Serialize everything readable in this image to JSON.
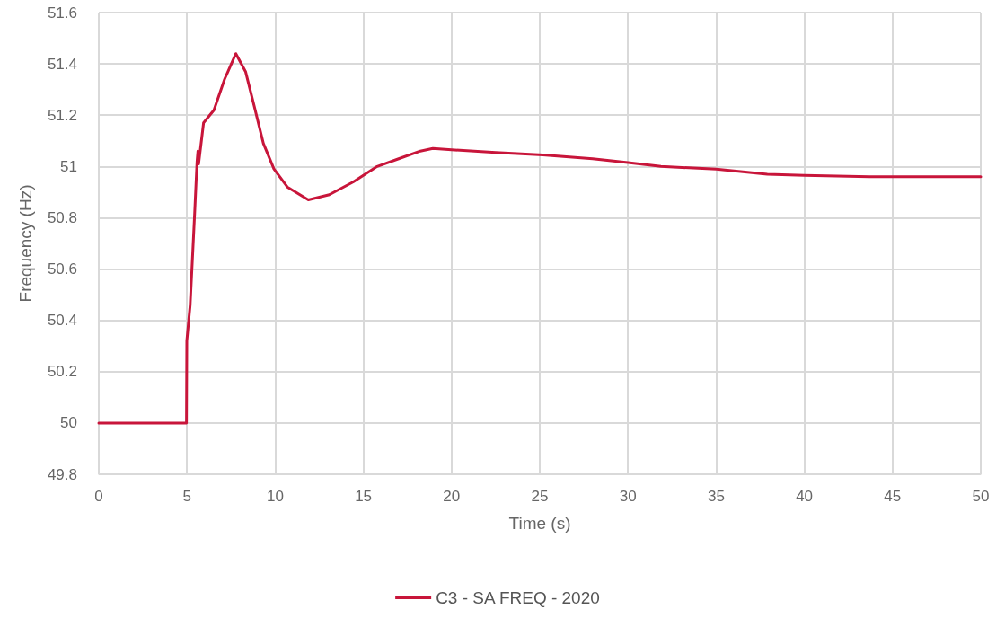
{
  "chart_data": {
    "type": "line",
    "xlabel": "Time (s)",
    "ylabel": "Frequency (Hz)",
    "x": [
      0,
      2,
      4,
      4.97,
      4.99,
      5.18,
      5.43,
      5.57,
      5.62,
      5.66,
      5.94,
      6.53,
      7.13,
      7.77,
      8.32,
      8.83,
      9.33,
      9.93,
      10.69,
      11.88,
      13.07,
      14.43,
      15.78,
      17,
      18.23,
      18.94,
      20,
      22.5,
      25.18,
      28,
      30,
      31.87,
      35,
      37.9,
      40,
      43.7,
      46,
      50
    ],
    "series": [
      {
        "name": "C3 - SA FREQ - 2020",
        "color": "#c8153a",
        "values": [
          50,
          50,
          50,
          50,
          50.32,
          50.46,
          50.81,
          51.02,
          51.06,
          51.01,
          51.17,
          51.22,
          51.34,
          51.44,
          51.37,
          51.23,
          51.09,
          50.99,
          50.92,
          50.87,
          50.89,
          50.94,
          51,
          51.03,
          51.06,
          51.07,
          51.065,
          51.055,
          51.045,
          51.03,
          51.015,
          51,
          50.99,
          50.97,
          50.965,
          50.96,
          50.96,
          50.96
        ]
      }
    ],
    "xlim": [
      0,
      50
    ],
    "xticks": [
      0,
      5,
      10,
      15,
      20,
      25,
      30,
      35,
      40,
      45,
      50
    ],
    "ylim": [
      49.8,
      51.6
    ],
    "yticks": [
      49.8,
      50,
      50.2,
      50.4,
      50.6,
      50.8,
      51,
      51.2,
      51.4,
      51.6
    ],
    "grid": true,
    "legend": "bottom",
    "marker": "none",
    "line_style": "solid"
  }
}
